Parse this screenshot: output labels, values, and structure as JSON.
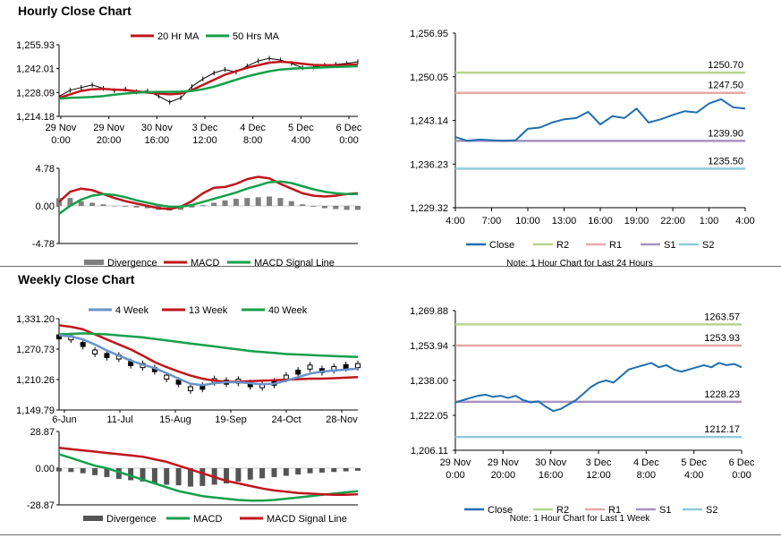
{
  "sections": {
    "hourly_title": "Hourly Close Chart",
    "weekly_title": "Weekly Close Chart"
  },
  "colors": {
    "price": "#000000",
    "ma20": "#c0151c",
    "ma50": "#14a04a",
    "close": "#1f6eb0",
    "r2": "#b7d48f",
    "r1": "#e8a8a8",
    "s1": "#a592c2",
    "s2": "#8fcbdb",
    "divergence": "#7f7f7f",
    "ma4": "#6a93c8"
  },
  "chart_data": [
    {
      "id": "hourly_price",
      "type": "line",
      "title": "Hourly Close Chart",
      "ylim": [
        1214.18,
        1255.93
      ],
      "yticks": [
        "1,255.93",
        "1,242.01",
        "1,228.09",
        "1,214.18"
      ],
      "xticks": [
        [
          "29 Nov",
          "0:00"
        ],
        [
          "29 Nov",
          "20:00"
        ],
        [
          "30 Nov",
          "16:00"
        ],
        [
          "3 Dec",
          "12:00"
        ],
        [
          "4 Dec",
          "8:00"
        ],
        [
          "5 Dec",
          "4:00"
        ],
        [
          "6 Dec",
          "0:00"
        ]
      ],
      "legend": [
        "20 Hr MA",
        "50 Hrs MA"
      ],
      "series": [
        {
          "name": "Price",
          "values": [
            1225.8,
            1229.4,
            1231.0,
            1232.5,
            1230.5,
            1229.2,
            1230.1,
            1228.5,
            1229.0,
            1226.0,
            1222.5,
            1225.0,
            1231.5,
            1236.0,
            1239.5,
            1241.5,
            1240.0,
            1243.5,
            1246.5,
            1248.0,
            1247.0,
            1245.0,
            1242.5,
            1243.0,
            1244.0,
            1244.5,
            1245.0,
            1246.0
          ]
        },
        {
          "name": "20 Hr MA",
          "values": [
            1225.0,
            1227.0,
            1229.0,
            1230.0,
            1230.2,
            1229.8,
            1229.5,
            1228.8,
            1228.0,
            1227.5,
            1227.0,
            1227.5,
            1229.5,
            1232.5,
            1235.5,
            1238.5,
            1240.5,
            1242.5,
            1244.0,
            1245.5,
            1246.0,
            1245.6,
            1244.8,
            1244.2,
            1244.0,
            1244.0,
            1244.2,
            1244.5
          ]
        },
        {
          "name": "50 Hrs MA",
          "values": [
            1224.5,
            1225.0,
            1225.2,
            1225.5,
            1226.0,
            1226.8,
            1227.5,
            1228.0,
            1228.3,
            1228.5,
            1228.5,
            1228.6,
            1229.0,
            1230.0,
            1231.5,
            1233.5,
            1235.5,
            1237.5,
            1239.0,
            1240.5,
            1241.5,
            1242.0,
            1242.3,
            1242.5,
            1242.8,
            1243.0,
            1243.2,
            1243.4
          ]
        }
      ]
    },
    {
      "id": "hourly_macd",
      "type": "bar",
      "ylim": [
        -4.78,
        4.78
      ],
      "yticks": [
        "4.78",
        "0.00",
        "-4.78"
      ],
      "legend": [
        "Divergence",
        "MACD",
        "MACD Signal Line"
      ],
      "series": [
        {
          "name": "Divergence",
          "values": [
            1.0,
            1.0,
            0.6,
            0.4,
            0.2,
            0.0,
            -0.1,
            -0.2,
            -0.3,
            -0.5,
            -0.6,
            -0.5,
            -0.2,
            0.1,
            0.4,
            0.7,
            0.9,
            1.0,
            1.1,
            1.2,
            1.0,
            0.6,
            0.2,
            -0.1,
            -0.3,
            -0.4,
            -0.5,
            -0.5
          ]
        },
        {
          "name": "MACD",
          "values": [
            0.5,
            1.8,
            2.2,
            2.0,
            1.5,
            1.0,
            0.6,
            0.3,
            0.0,
            -0.3,
            -0.4,
            -0.1,
            0.6,
            1.6,
            2.3,
            2.4,
            2.8,
            3.4,
            3.7,
            3.5,
            2.8,
            2.2,
            1.6,
            1.3,
            1.2,
            1.3,
            1.5,
            1.6
          ]
        },
        {
          "name": "MACD Signal Line",
          "values": [
            -1.0,
            0.0,
            0.8,
            1.3,
            1.5,
            1.4,
            1.1,
            0.7,
            0.4,
            0.1,
            -0.1,
            -0.1,
            0.1,
            0.5,
            0.9,
            1.3,
            1.7,
            2.2,
            2.6,
            3.0,
            3.1,
            2.9,
            2.5,
            2.1,
            1.8,
            1.6,
            1.5,
            1.5
          ]
        }
      ]
    },
    {
      "id": "hourly_levels",
      "type": "line",
      "ylim": [
        1229.32,
        1256.95
      ],
      "yticks": [
        "1,256.95",
        "1,250.05",
        "1,243.14",
        "1,236.23",
        "1,229.32"
      ],
      "xticks": [
        "4:00",
        "7:00",
        "10:00",
        "13:00",
        "16:00",
        "19:00",
        "22:00",
        "1:00",
        "4:00"
      ],
      "levels": [
        {
          "name": "R2",
          "value": 1250.7,
          "label": "1250.70"
        },
        {
          "name": "R1",
          "value": 1247.5,
          "label": "1247.50"
        },
        {
          "name": "S1",
          "value": 1239.9,
          "label": "1239.90"
        },
        {
          "name": "S2",
          "value": 1235.5,
          "label": "1235.50"
        }
      ],
      "legend": [
        "Close",
        "R2",
        "R1",
        "S1",
        "S2"
      ],
      "note": "Note: 1 Hour Chart for Last 24 Hours",
      "series": [
        {
          "name": "Close",
          "values": [
            1240.5,
            1239.9,
            1240.1,
            1240.0,
            1239.9,
            1240.0,
            1241.8,
            1242.0,
            1242.8,
            1243.3,
            1243.5,
            1244.5,
            1242.5,
            1243.8,
            1243.5,
            1245.0,
            1242.8,
            1243.3,
            1244.0,
            1244.6,
            1244.4,
            1245.8,
            1246.5,
            1245.2,
            1245.0
          ]
        }
      ]
    },
    {
      "id": "weekly_price",
      "type": "line",
      "title": "Weekly Close Chart",
      "ylim": [
        1149.79,
        1331.2
      ],
      "yticks": [
        "1,331.20",
        "1,270.73",
        "1,210.26",
        "1,149.79"
      ],
      "xticks": [
        "6-Jun",
        "11-Jul",
        "15-Aug",
        "19-Sep",
        "24-Oct",
        "28-Nov"
      ],
      "legend": [
        "4 Week",
        "13 Week",
        "40 Week"
      ],
      "series": [
        {
          "name": "Price",
          "values": [
            1295,
            1293,
            1280,
            1265,
            1258,
            1255,
            1242,
            1238,
            1230,
            1215,
            1205,
            1192,
            1195,
            1208,
            1205,
            1207,
            1200,
            1198,
            1203,
            1215,
            1225,
            1235,
            1228,
            1232,
            1236,
            1238
          ]
        },
        {
          "name": "4 Week",
          "values": [
            1298,
            1296,
            1290,
            1280,
            1268,
            1258,
            1248,
            1240,
            1233,
            1223,
            1212,
            1202,
            1199,
            1203,
            1205,
            1205,
            1203,
            1201,
            1202,
            1208,
            1215,
            1222,
            1226,
            1228,
            1230,
            1232
          ]
        },
        {
          "name": "13 Week",
          "values": [
            1318,
            1315,
            1310,
            1300,
            1290,
            1280,
            1270,
            1258,
            1245,
            1235,
            1226,
            1218,
            1212,
            1208,
            1206,
            1206,
            1207,
            1208,
            1209,
            1210,
            1211,
            1212,
            1212,
            1213,
            1214,
            1215
          ]
        },
        {
          "name": "40 Week",
          "values": [
            1300,
            1301,
            1302,
            1301,
            1300,
            1298,
            1296,
            1294,
            1291,
            1288,
            1285,
            1282,
            1279,
            1276,
            1273,
            1270,
            1267,
            1265,
            1263,
            1261,
            1260,
            1259,
            1258,
            1257,
            1256,
            1255
          ]
        }
      ]
    },
    {
      "id": "weekly_macd",
      "type": "bar",
      "ylim": [
        -28.87,
        28.87
      ],
      "yticks": [
        "28.87",
        "0.00",
        "-28.87"
      ],
      "legend": [
        "Divergence",
        "MACD",
        "MACD Signal Line"
      ],
      "series": [
        {
          "name": "Divergence",
          "values": [
            -2.5,
            -3.0,
            -4.0,
            -5.5,
            -7.0,
            -8.5,
            -9.5,
            -10.5,
            -12.0,
            -13.0,
            -13.5,
            -14.5,
            -14.0,
            -13.0,
            -12.0,
            -10.5,
            -9.0,
            -8.0,
            -7.0,
            -6.0,
            -5.0,
            -4.0,
            -3.5,
            -3.0,
            -2.5,
            -2.0
          ]
        },
        {
          "name": "MACD",
          "values": [
            11,
            8,
            5,
            2,
            0,
            -3,
            -6,
            -9,
            -12,
            -15,
            -18,
            -20,
            -22,
            -23,
            -24,
            -25,
            -25.5,
            -25.5,
            -25,
            -24,
            -23,
            -22,
            -21,
            -20,
            -19,
            -18
          ]
        },
        {
          "name": "MACD Signal Line",
          "values": [
            16,
            15,
            14,
            13,
            12,
            11,
            10,
            9,
            7,
            5,
            2,
            -1,
            -4,
            -7,
            -10,
            -12,
            -14,
            -16,
            -17.5,
            -18.5,
            -19.5,
            -20,
            -20.5,
            -21,
            -21,
            -20.5
          ]
        }
      ]
    },
    {
      "id": "weekly_levels",
      "type": "line",
      "ylim": [
        1206.11,
        1269.88
      ],
      "yticks": [
        "1,269.88",
        "1,253.94",
        "1,238.00",
        "1,222.05",
        "1,206.11"
      ],
      "xticks": [
        [
          "29 Nov",
          "0:00"
        ],
        [
          "29 Nov",
          "20:00"
        ],
        [
          "30 Nov",
          "16:00"
        ],
        [
          "3 Dec",
          "12:00"
        ],
        [
          "4 Dec",
          "8:00"
        ],
        [
          "5 Dec",
          "4:00"
        ],
        [
          "6 Dec",
          "0:00"
        ]
      ],
      "levels": [
        {
          "name": "R2",
          "value": 1263.57,
          "label": "1263.57"
        },
        {
          "name": "R1",
          "value": 1253.93,
          "label": "1253.93"
        },
        {
          "name": "S1",
          "value": 1228.23,
          "label": "1228.23"
        },
        {
          "name": "S2",
          "value": 1212.17,
          "label": "1212.17"
        }
      ],
      "legend": [
        "Close",
        "R2",
        "R1",
        "S1",
        "S2"
      ],
      "note": "Note: 1 Hour Chart for Last 1 Week",
      "series": [
        {
          "name": "Close",
          "values": [
            1228,
            1229,
            1230,
            1231,
            1231.5,
            1230.5,
            1231,
            1230,
            1231,
            1229,
            1228,
            1228.5,
            1226,
            1224,
            1225,
            1227,
            1229,
            1232,
            1235,
            1237,
            1238,
            1237,
            1240,
            1243,
            1244,
            1245,
            1246,
            1244,
            1245,
            1243,
            1242,
            1243,
            1244,
            1245,
            1244,
            1246,
            1245,
            1245.5,
            1244
          ]
        }
      ]
    }
  ]
}
